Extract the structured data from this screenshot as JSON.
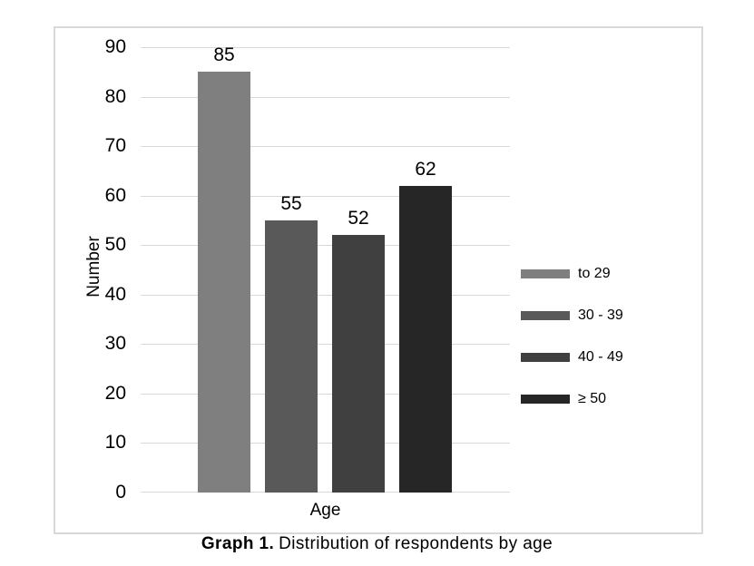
{
  "figure": {
    "caption_label": "Graph 1.",
    "caption_text": "Distribution of respondents by age"
  },
  "chart_data": {
    "type": "bar",
    "title": "",
    "xlabel": "Age",
    "ylabel": "Number",
    "categories": [
      "to 29",
      "30 - 39",
      "40 - 49",
      "≥ 50"
    ],
    "values": [
      85,
      55,
      52,
      62
    ],
    "ylim": [
      0,
      90
    ],
    "yticks": [
      0,
      10,
      20,
      30,
      40,
      50,
      60,
      70,
      80,
      90
    ],
    "grid": true,
    "legend_position": "right",
    "legend_entries": [
      "to 29",
      "30 - 39",
      "40 - 49",
      "≥ 50"
    ],
    "series_colors": [
      "#7f7f7f",
      "#595959",
      "#404040",
      "#262626"
    ]
  },
  "colors": {
    "background": "#ffffff",
    "frame_border": "#d9d9d9",
    "gridline": "#d9d9d9",
    "text": "#000000"
  }
}
